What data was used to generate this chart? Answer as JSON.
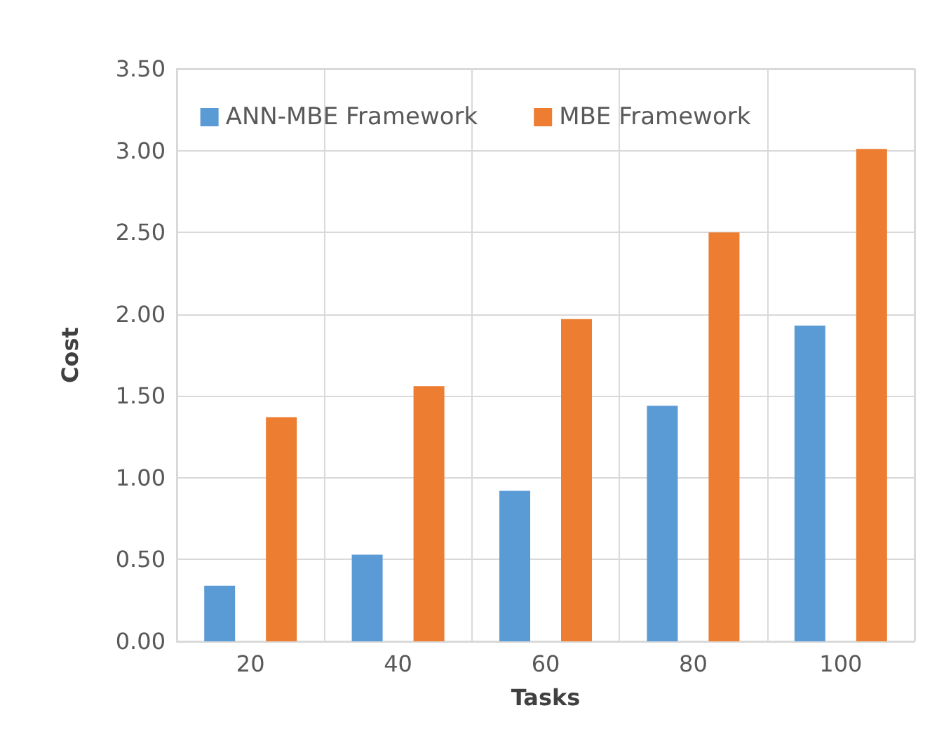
{
  "chart_data": {
    "type": "bar",
    "xlabel": "Tasks",
    "ylabel": "Cost",
    "categories": [
      "20",
      "40",
      "60",
      "80",
      "100"
    ],
    "series": [
      {
        "name": "ANN-MBE Framework",
        "color": "#5b9bd5",
        "values": [
          0.34,
          0.53,
          0.92,
          1.44,
          1.93
        ]
      },
      {
        "name": "MBE Framework",
        "color": "#ed7d31",
        "values": [
          1.37,
          1.56,
          1.97,
          2.5,
          3.01
        ]
      }
    ],
    "ylim": [
      0,
      3.5
    ],
    "yticks": [
      {
        "value": 0,
        "label": "0.00"
      },
      {
        "value": 0.5,
        "label": "0.50"
      },
      {
        "value": 1,
        "label": "1.00"
      },
      {
        "value": 1.5,
        "label": "1.50"
      },
      {
        "value": 2,
        "label": "2.00"
      },
      {
        "value": 2.5,
        "label": "2.50"
      },
      {
        "value": 3,
        "label": "3.00"
      },
      {
        "value": 3.5,
        "label": "3.50"
      }
    ],
    "grid": true,
    "legend": "top"
  }
}
